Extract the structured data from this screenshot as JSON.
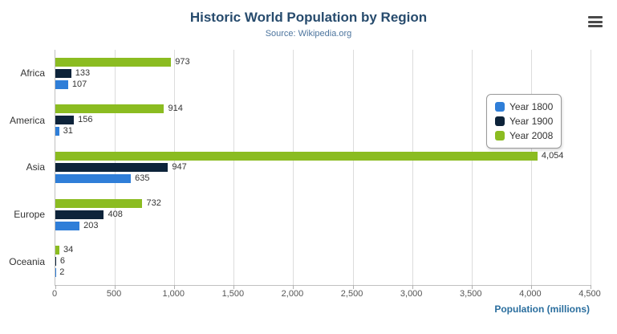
{
  "title": "Historic World Population by Region",
  "subtitle": "Source: Wikipedia.org",
  "xaxis_title": "Population (millions)",
  "menu_icon": "hamburger-menu",
  "chart_data": {
    "type": "bar",
    "orientation": "horizontal",
    "title": "Historic World Population by Region",
    "subtitle": "Source: Wikipedia.org",
    "xlabel": "Population (millions)",
    "categories": [
      "Africa",
      "America",
      "Asia",
      "Europe",
      "Oceania"
    ],
    "series": [
      {
        "name": "Year 1800",
        "color": "#2f7ed8",
        "values": [
          107,
          31,
          635,
          203,
          2
        ]
      },
      {
        "name": "Year 1900",
        "color": "#0d233a",
        "values": [
          133,
          156,
          947,
          408,
          6
        ]
      },
      {
        "name": "Year 2008",
        "color": "#8bbc21",
        "values": [
          973,
          914,
          4054,
          732,
          34
        ]
      }
    ],
    "display_order_top_to_bottom": [
      "Year 2008",
      "Year 1900",
      "Year 1800"
    ],
    "xlim": [
      0,
      4500
    ],
    "xticks": [
      0,
      500,
      1000,
      1500,
      2000,
      2500,
      3000,
      3500,
      4000,
      4500
    ],
    "xtick_labels": [
      "0",
      "500",
      "1,000",
      "1,500",
      "2,000",
      "2,500",
      "3,000",
      "3,500",
      "4,000",
      "4,500"
    ],
    "grid": true,
    "legend_position": "right"
  }
}
